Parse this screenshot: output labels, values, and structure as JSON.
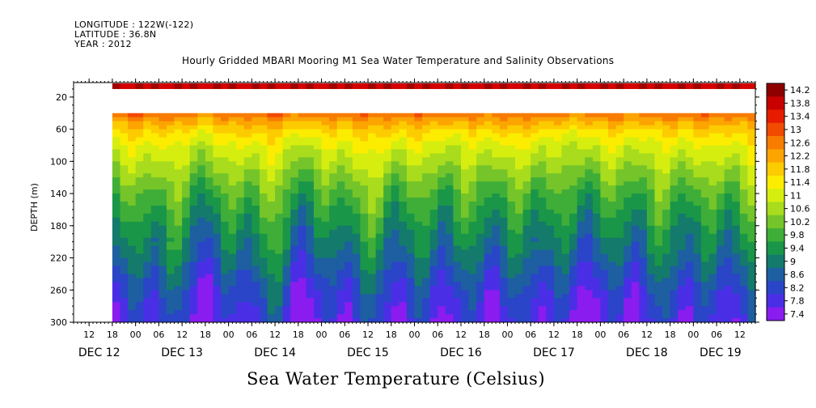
{
  "header": {
    "longitude": "LONGITUDE : 122W(-122)",
    "latitude": "LATITUDE : 36.8N",
    "year": "YEAR : 2012"
  },
  "chart_data": {
    "type": "heatmap",
    "title": "Hourly Gridded MBARI Mooring M1 Sea Water Temperature and Salinity Observations",
    "caption": "Sea Water Temperature (Celsius)",
    "xlabel": "",
    "ylabel": "DEPTH (m)",
    "y_axis": {
      "range": [
        300,
        2
      ],
      "ticks": [
        20,
        60,
        100,
        140,
        180,
        220,
        260,
        300
      ],
      "inverted": true
    },
    "x_axis": {
      "range": [
        "2012-12-12 08:00",
        "2012-12-19 16:00"
      ],
      "hour_ticks": [
        "12",
        "18",
        "00",
        "06",
        "12",
        "18",
        "00",
        "06",
        "12",
        "18",
        "00",
        "06",
        "12",
        "18",
        "00",
        "06",
        "12",
        "18",
        "00",
        "06",
        "12",
        "18",
        "00",
        "06",
        "12",
        "18",
        "00",
        "06",
        "12"
      ],
      "day_labels": [
        "DEC 12",
        "DEC 13",
        "DEC 14",
        "DEC 15",
        "DEC 16",
        "DEC 17",
        "DEC 18",
        "DEC 19"
      ]
    },
    "colorbar": {
      "levels": [
        14.2,
        13.8,
        13.4,
        13,
        12.6,
        12.2,
        11.8,
        11.4,
        11,
        10.6,
        10.2,
        9.8,
        9.4,
        9,
        8.6,
        8.2,
        7.8,
        7.4
      ]
    },
    "data_extent": {
      "start": "2012-12-12 18:00",
      "near_surface_depth_range_m": [
        2,
        10
      ],
      "near_surface_temp_c": 14.2,
      "no_data_depth_range_m": [
        10,
        40
      ],
      "profile_depth_range_m": [
        40,
        300
      ]
    },
    "representative_profile": {
      "depth_m": [
        40,
        50,
        60,
        80,
        100,
        120,
        140,
        160,
        180,
        200,
        220,
        240,
        260,
        280,
        300
      ],
      "temp_c": [
        12.8,
        12.2,
        11.8,
        11.2,
        10.8,
        10.4,
        10.0,
        9.7,
        9.4,
        9.1,
        8.8,
        8.5,
        8.2,
        8.0,
        7.8
      ]
    },
    "grid": false,
    "legend_position": "right"
  }
}
